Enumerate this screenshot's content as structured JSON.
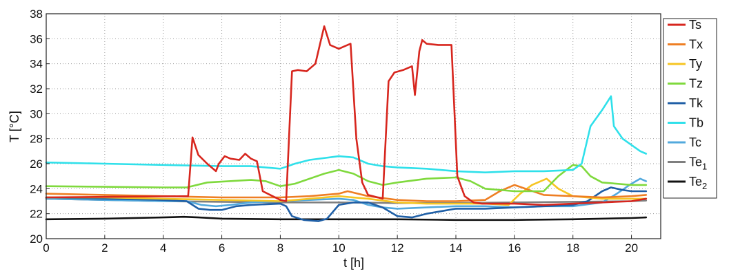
{
  "chart_data": {
    "type": "line",
    "xlabel": "t [h]",
    "ylabel": "T [°C]",
    "xlim": [
      0,
      21
    ],
    "ylim": [
      20,
      38
    ],
    "xticks": [
      "0",
      "2",
      "4",
      "6",
      "8",
      "10",
      "12",
      "14",
      "16",
      "18",
      "20"
    ],
    "yticks": [
      "20",
      "22",
      "24",
      "26",
      "28",
      "30",
      "32",
      "34",
      "36",
      "38"
    ],
    "grid": true,
    "legend_position": "right",
    "series": [
      {
        "name": "Ts",
        "base": "T",
        "sub": "s",
        "color": "#d7261e",
        "x": [
          0,
          4.85,
          5.0,
          5.2,
          5.5,
          5.8,
          5.9,
          6.1,
          6.3,
          6.6,
          6.8,
          7.0,
          7.2,
          7.4,
          8.0,
          8.2,
          8.4,
          8.6,
          8.9,
          9.2,
          9.4,
          9.5,
          9.7,
          10.0,
          10.2,
          10.4,
          10.6,
          10.8,
          11.0,
          11.5,
          11.7,
          11.9,
          12.2,
          12.5,
          12.6,
          12.75,
          12.85,
          13.0,
          13.4,
          13.85,
          14.05,
          14.3,
          14.6,
          14.9,
          16.0,
          17.0,
          18.0,
          19.0,
          20.0,
          20.5
        ],
        "y": [
          23.3,
          23.4,
          28.1,
          26.7,
          26.0,
          25.4,
          26.0,
          26.6,
          26.4,
          26.3,
          26.8,
          26.4,
          26.2,
          23.8,
          23.1,
          23.0,
          33.4,
          33.5,
          33.4,
          34.0,
          36.0,
          37.0,
          35.5,
          35.2,
          35.4,
          35.6,
          28.0,
          24.5,
          23.5,
          23.2,
          32.6,
          33.3,
          33.5,
          33.8,
          31.5,
          35.0,
          35.9,
          35.6,
          35.5,
          35.5,
          25.0,
          23.4,
          22.9,
          22.8,
          22.8,
          22.7,
          22.8,
          22.9,
          23.0,
          23.2
        ]
      },
      {
        "name": "Tx",
        "base": "T",
        "sub": "x",
        "color": "#ee7e23",
        "x": [
          0,
          2,
          4,
          6,
          8,
          9,
          10,
          10.3,
          11,
          12,
          13,
          14,
          15,
          15.5,
          16,
          16.5,
          17,
          18,
          19,
          20,
          20.5
        ],
        "y": [
          23.6,
          23.5,
          23.4,
          23.3,
          23.3,
          23.4,
          23.6,
          23.8,
          23.4,
          23.1,
          23.0,
          23.0,
          23.1,
          23.8,
          24.3,
          23.9,
          23.5,
          23.4,
          23.3,
          23.4,
          23.5
        ]
      },
      {
        "name": "Ty",
        "base": "T",
        "sub": "y",
        "color": "#f6c521",
        "x": [
          0,
          2,
          4,
          6,
          8,
          9,
          10,
          11,
          12,
          13,
          14,
          15,
          15.8,
          16.2,
          16.6,
          17.1,
          17.5,
          18,
          19,
          20,
          20.5
        ],
        "y": [
          23.3,
          23.3,
          23.2,
          23.1,
          23.0,
          23.2,
          23.4,
          23.2,
          22.9,
          22.8,
          22.8,
          22.8,
          22.7,
          23.6,
          24.3,
          24.8,
          24.0,
          23.4,
          23.2,
          23.2,
          23.2
        ]
      },
      {
        "name": "Tz",
        "base": "T",
        "sub": "z",
        "color": "#7fd93d",
        "x": [
          0,
          2,
          4,
          4.8,
          5.5,
          7.0,
          7.5,
          8.0,
          8.5,
          9.5,
          10.0,
          10.5,
          11.0,
          11.5,
          12.0,
          13.0,
          14.0,
          14.5,
          15.0,
          16.0,
          17.0,
          17.5,
          18.0,
          18.3,
          18.6,
          19.0,
          20.0,
          20.5
        ],
        "y": [
          24.2,
          24.15,
          24.1,
          24.1,
          24.5,
          24.7,
          24.6,
          24.2,
          24.4,
          25.2,
          25.5,
          25.2,
          24.6,
          24.3,
          24.5,
          24.8,
          24.9,
          24.6,
          24.0,
          23.8,
          23.8,
          25.0,
          25.9,
          25.8,
          25.0,
          24.5,
          24.3,
          24.3
        ]
      },
      {
        "name": "Tk",
        "base": "T",
        "sub": "k",
        "color": "#1f5fa6",
        "x": [
          0,
          2,
          4,
          4.8,
          5.2,
          5.6,
          6.0,
          6.5,
          7.0,
          8.0,
          8.2,
          8.4,
          8.8,
          9.3,
          9.6,
          10.0,
          10.5,
          11.0,
          11.5,
          12.0,
          12.5,
          13.0,
          14.0,
          15.0,
          16.0,
          17.0,
          18.0,
          18.5,
          19.0,
          19.3,
          19.7,
          20.0,
          20.5
        ],
        "y": [
          23.3,
          23.2,
          23.1,
          23.0,
          22.4,
          22.3,
          22.3,
          22.6,
          22.7,
          22.8,
          22.6,
          21.8,
          21.5,
          21.4,
          21.6,
          22.7,
          22.9,
          22.9,
          22.5,
          21.8,
          21.7,
          22.0,
          22.4,
          22.4,
          22.5,
          22.6,
          22.7,
          23.0,
          23.8,
          24.1,
          23.9,
          23.8,
          23.8
        ]
      },
      {
        "name": "Tb",
        "base": "T",
        "sub": "b",
        "color": "#2fe0ea",
        "x": [
          0,
          2,
          4,
          6,
          7,
          8,
          8.5,
          9,
          10,
          10.5,
          11,
          11.5,
          12,
          13,
          14,
          15,
          16,
          17,
          18,
          18.3,
          18.6,
          19.0,
          19.3,
          19.4,
          19.7,
          20.0,
          20.3,
          20.5
        ],
        "y": [
          26.1,
          26.0,
          25.9,
          25.8,
          25.8,
          25.6,
          26.0,
          26.3,
          26.6,
          26.5,
          26.0,
          25.8,
          25.7,
          25.6,
          25.4,
          25.3,
          25.4,
          25.4,
          25.5,
          26.0,
          29.0,
          30.3,
          31.4,
          29.0,
          28.0,
          27.5,
          27.0,
          26.8
        ]
      },
      {
        "name": "Tc",
        "base": "T",
        "sub": "c",
        "color": "#52a9dd",
        "x": [
          0,
          2,
          4,
          4.8,
          5.3,
          5.8,
          6.3,
          7.0,
          8.0,
          9.0,
          10.0,
          10.5,
          11.0,
          11.5,
          12.0,
          13.0,
          14.0,
          15.0,
          16.0,
          17.0,
          18.0,
          19.0,
          19.5,
          20.0,
          20.3,
          20.5
        ],
        "y": [
          23.2,
          23.1,
          23.0,
          23.0,
          22.7,
          22.6,
          22.7,
          22.9,
          23.0,
          23.1,
          23.2,
          23.1,
          22.7,
          22.5,
          22.4,
          22.5,
          22.6,
          22.6,
          22.5,
          22.6,
          22.6,
          22.9,
          23.6,
          24.4,
          24.8,
          24.6
        ]
      },
      {
        "name": "Te1",
        "base": "T",
        "sub": "e1",
        "color": "#7f7f7f",
        "x": [
          0,
          2,
          4,
          6,
          8,
          10,
          12,
          14,
          16,
          18,
          20,
          20.5
        ],
        "y": [
          23.2,
          23.1,
          23.0,
          22.95,
          22.9,
          22.9,
          22.85,
          22.85,
          22.9,
          22.95,
          23.0,
          23.05
        ]
      },
      {
        "name": "Te2",
        "base": "T",
        "sub": "e2",
        "color": "#111111",
        "x": [
          0,
          2,
          4,
          4.7,
          5.2,
          6,
          8,
          10,
          12,
          14,
          15.5,
          16,
          18,
          20,
          20.5
        ],
        "y": [
          21.55,
          21.6,
          21.7,
          21.75,
          21.7,
          21.6,
          21.55,
          21.55,
          21.55,
          21.5,
          21.5,
          21.5,
          21.55,
          21.65,
          21.7
        ]
      }
    ]
  }
}
